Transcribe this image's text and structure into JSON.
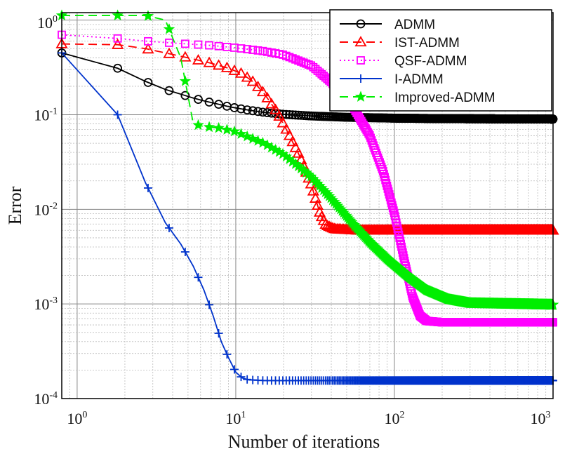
{
  "chart_data": {
    "type": "line",
    "title": "",
    "xlabel": "Number of iterations",
    "ylabel": "Error",
    "xscale": "log",
    "yscale": "log",
    "xlim": [
      0.8,
      1000
    ],
    "ylim": [
      0.0001,
      1.2
    ],
    "x_ticks": [
      {
        "base": "10",
        "exp": "0"
      },
      {
        "base": "10",
        "exp": "1"
      },
      {
        "base": "10",
        "exp": "2"
      },
      {
        "base": "10",
        "exp": "3"
      }
    ],
    "y_ticks": [
      {
        "base": "10",
        "exp": "-4"
      },
      {
        "base": "10",
        "exp": "-3"
      },
      {
        "base": "10",
        "exp": "-2"
      },
      {
        "base": "10",
        "exp": "-1"
      },
      {
        "base": "10",
        "exp": "0"
      }
    ],
    "grid": true,
    "legend_position": "top-right",
    "series": [
      {
        "name": "ADMM",
        "color": "#000000",
        "line_style": "solid",
        "marker": "circle",
        "points": [
          [
            0.8,
            0.45
          ],
          [
            1.8,
            0.31
          ],
          [
            2.7,
            0.225
          ],
          [
            3.6,
            0.185
          ],
          [
            4.5,
            0.165
          ],
          [
            5.4,
            0.15
          ],
          [
            6.3,
            0.14
          ],
          [
            7.2,
            0.133
          ],
          [
            8.1,
            0.127
          ],
          [
            9,
            0.122
          ],
          [
            10,
            0.118
          ],
          [
            12,
            0.112
          ],
          [
            15,
            0.106
          ],
          [
            20,
            0.101
          ],
          [
            30,
            0.097
          ],
          [
            50,
            0.094
          ],
          [
            100,
            0.092
          ],
          [
            200,
            0.091
          ],
          [
            1000,
            0.09
          ]
        ]
      },
      {
        "name": "IST-ADMM",
        "color": "#ff0000",
        "line_style": "dashed",
        "marker": "triangle",
        "points": [
          [
            0.8,
            0.56
          ],
          [
            1.8,
            0.55
          ],
          [
            2.7,
            0.5
          ],
          [
            3.6,
            0.45
          ],
          [
            5,
            0.4
          ],
          [
            7,
            0.35
          ],
          [
            9,
            0.31
          ],
          [
            11,
            0.27
          ],
          [
            13,
            0.22
          ],
          [
            15,
            0.17
          ],
          [
            18,
            0.11
          ],
          [
            21,
            0.068
          ],
          [
            25,
            0.038
          ],
          [
            30,
            0.018
          ],
          [
            34,
            0.009
          ],
          [
            37,
            0.0068
          ],
          [
            42,
            0.0062
          ],
          [
            60,
            0.006
          ],
          [
            100,
            0.006
          ],
          [
            1000,
            0.006
          ]
        ]
      },
      {
        "name": "QSF-ADMM",
        "color": "#ff00ff",
        "line_style": "dotted",
        "marker": "square",
        "points": [
          [
            0.8,
            0.7
          ],
          [
            1.8,
            0.64
          ],
          [
            2.7,
            0.6
          ],
          [
            3.6,
            0.58
          ],
          [
            5,
            0.56
          ],
          [
            7,
            0.54
          ],
          [
            10,
            0.51
          ],
          [
            15,
            0.47
          ],
          [
            20,
            0.43
          ],
          [
            30,
            0.33
          ],
          [
            40,
            0.22
          ],
          [
            55,
            0.12
          ],
          [
            70,
            0.06
          ],
          [
            85,
            0.025
          ],
          [
            100,
            0.009
          ],
          [
            115,
            0.003
          ],
          [
            130,
            0.0012
          ],
          [
            145,
            0.00075
          ],
          [
            160,
            0.00066
          ],
          [
            200,
            0.00064
          ],
          [
            1000,
            0.00064
          ]
        ]
      },
      {
        "name": "I-ADMM",
        "color": "#0033cc",
        "line_style": "solid",
        "marker": "plus",
        "points": [
          [
            0.8,
            0.45
          ],
          [
            1.8,
            0.1
          ],
          [
            2.7,
            0.019
          ],
          [
            3.6,
            0.0072
          ],
          [
            4.5,
            0.0043
          ],
          [
            5.4,
            0.0025
          ],
          [
            6.3,
            0.0014
          ],
          [
            7.2,
            0.00075
          ],
          [
            8.1,
            0.0004
          ],
          [
            9,
            0.00027
          ],
          [
            10,
            0.00019
          ],
          [
            11,
            0.000165
          ],
          [
            12,
            0.000158
          ],
          [
            15,
            0.000155
          ],
          [
            100,
            0.000155
          ],
          [
            1000,
            0.000155
          ]
        ]
      },
      {
        "name": "Improved-ADMM",
        "color": "#00ee00",
        "line_style": "dashed",
        "marker": "star",
        "points": [
          [
            0.8,
            1.12
          ],
          [
            1.8,
            1.12
          ],
          [
            2.7,
            1.12
          ],
          [
            3.6,
            1.0
          ],
          [
            4.5,
            0.4
          ],
          [
            5.4,
            0.08
          ],
          [
            6.3,
            0.075
          ],
          [
            8,
            0.072
          ],
          [
            10,
            0.066
          ],
          [
            15,
            0.05
          ],
          [
            20,
            0.038
          ],
          [
            30,
            0.022
          ],
          [
            40,
            0.013
          ],
          [
            55,
            0.007
          ],
          [
            70,
            0.0045
          ],
          [
            90,
            0.003
          ],
          [
            120,
            0.002
          ],
          [
            160,
            0.0014
          ],
          [
            220,
            0.00112
          ],
          [
            300,
            0.00102
          ],
          [
            1000,
            0.00098
          ]
        ]
      }
    ]
  }
}
